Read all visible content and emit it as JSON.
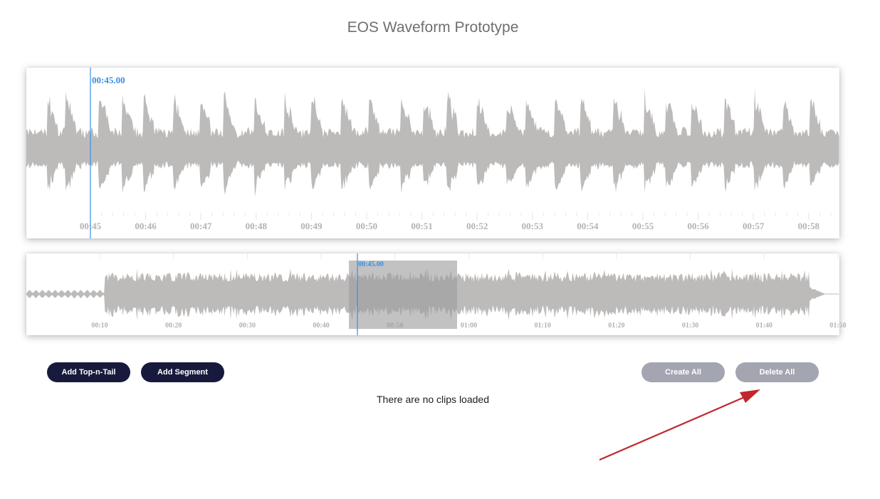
{
  "page": {
    "title": "EOS Waveform Prototype"
  },
  "zoom_view": {
    "playhead_time": "00:45.00",
    "tick_labels": [
      "00:45",
      "00:46",
      "00:47",
      "00:48",
      "00:49",
      "00:50",
      "00:51",
      "00:52",
      "00:53",
      "00:54",
      "00:55",
      "00:56",
      "00:57",
      "00:58"
    ],
    "colors": {
      "waveform": "#bdbbba",
      "playhead": "#3a8ee6",
      "ticks": "#e4e4e4"
    }
  },
  "overview": {
    "playhead_time": "00:45.00",
    "tick_labels": [
      "00:10",
      "00:20",
      "00:30",
      "00:40",
      "00:50",
      "01:00",
      "01:10",
      "01:20",
      "01:30",
      "01:40",
      "01:50"
    ],
    "colors": {
      "waveform": "#bdbbba",
      "selection": "#9d9d9d",
      "playhead": "#3a8ee6"
    }
  },
  "controls": {
    "add_top_n_tail": "Add Top-n-Tail",
    "add_segment": "Add Segment",
    "create_all": "Create All",
    "delete_all": "Delete All"
  },
  "clips": {
    "empty_message": "There are no clips loaded"
  },
  "annotation": {
    "arrow_color": "#c0272d"
  }
}
